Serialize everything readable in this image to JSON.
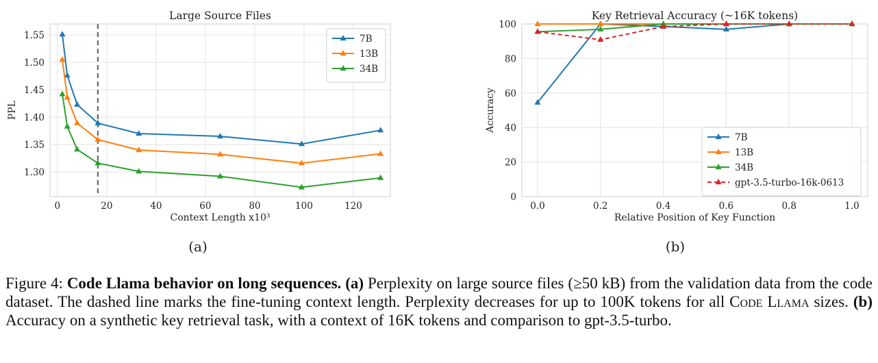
{
  "chart_data": [
    {
      "type": "line",
      "title": "Large Source Files",
      "xlabel": "Context Length x10³",
      "ylabel": "PPL",
      "xlim": [
        -3,
        135
      ],
      "ylim": [
        1.255,
        1.57
      ],
      "xticks": [
        0,
        20,
        40,
        60,
        80,
        100,
        120
      ],
      "xtick_labels": [
        "0",
        "20",
        "40",
        "60",
        "80",
        "100",
        "120"
      ],
      "yticks": [
        1.3,
        1.35,
        1.4,
        1.45,
        1.5,
        1.55
      ],
      "ytick_labels": [
        "1.30",
        "1.35",
        "1.40",
        "1.45",
        "1.50",
        "1.55"
      ],
      "grid": true,
      "legend_position": "top-right",
      "vline": 16.4,
      "panel_label": "(a)",
      "series": [
        {
          "name": "7B",
          "color": "#1f77b4",
          "x": [
            2,
            4,
            8,
            16.4,
            33,
            66,
            99,
            131
          ],
          "y": [
            1.551,
            1.476,
            1.423,
            1.389,
            1.37,
            1.365,
            1.351,
            1.376
          ]
        },
        {
          "name": "13B",
          "color": "#ff7f0e",
          "x": [
            2,
            4,
            8,
            16.4,
            33,
            66,
            99,
            131
          ],
          "y": [
            1.505,
            1.436,
            1.389,
            1.359,
            1.34,
            1.332,
            1.316,
            1.333
          ]
        },
        {
          "name": "34B",
          "color": "#2ca02c",
          "x": [
            2,
            4,
            8,
            16.4,
            33,
            66,
            99,
            131
          ],
          "y": [
            1.442,
            1.383,
            1.341,
            1.316,
            1.301,
            1.292,
            1.272,
            1.289
          ]
        }
      ]
    },
    {
      "type": "line",
      "title": "Key Retrieval Accuracy (~16K tokens)",
      "xlabel": "Relative Position of Key Function",
      "ylabel": "Accuracy",
      "xlim": [
        -0.05,
        1.05
      ],
      "ylim": [
        0,
        100
      ],
      "xticks": [
        0.0,
        0.2,
        0.4,
        0.6,
        0.8,
        1.0
      ],
      "xtick_labels": [
        "0.0",
        "0.2",
        "0.4",
        "0.6",
        "0.8",
        "1.0"
      ],
      "yticks": [
        0,
        20,
        40,
        60,
        80,
        100
      ],
      "ytick_labels": [
        "0",
        "20",
        "40",
        "60",
        "80",
        "100"
      ],
      "grid": true,
      "legend_position": "bottom-right",
      "panel_label": "(b)",
      "series": [
        {
          "name": "7B",
          "color": "#1f77b4",
          "dashed": false,
          "x": [
            0.0,
            0.2,
            0.4,
            0.6,
            0.8,
            1.0
          ],
          "y": [
            54.5,
            100,
            98.5,
            96.9,
            100,
            100
          ]
        },
        {
          "name": "13B",
          "color": "#ff7f0e",
          "dashed": false,
          "x": [
            0.0,
            0.2,
            0.4,
            0.6,
            0.8,
            1.0
          ],
          "y": [
            100,
            100,
            100,
            100,
            100,
            100
          ]
        },
        {
          "name": "34B",
          "color": "#2ca02c",
          "dashed": false,
          "x": [
            0.0,
            0.2,
            0.4,
            0.6,
            0.8,
            1.0
          ],
          "y": [
            95.5,
            96.9,
            100,
            100,
            100,
            100
          ]
        },
        {
          "name": "gpt-3.5-turbo-16k-0613",
          "color": "#d62728",
          "dashed": true,
          "x": [
            0.0,
            0.2,
            0.4,
            0.6,
            0.8,
            1.0
          ],
          "y": [
            95.5,
            90.9,
            98.5,
            100,
            100,
            100
          ]
        }
      ]
    }
  ],
  "caption": {
    "fig_label": "Figure 4: ",
    "bold_title": "Code Llama behavior on long sequences.",
    "a_label": "(a)",
    "a_text_1": " Perplexity on large source files (≥50 kB) from the validation data from the code dataset. The dashed line marks the fine-tuning context length. Perplexity decreases for up to 100K tokens for all ",
    "model_name": "Code Llama",
    "a_text_2": " sizes. ",
    "b_label": "(b)",
    "b_text": " Accuracy on a synthetic key retrieval task, with a context of 16K tokens and comparison to gpt-3.5-turbo."
  }
}
